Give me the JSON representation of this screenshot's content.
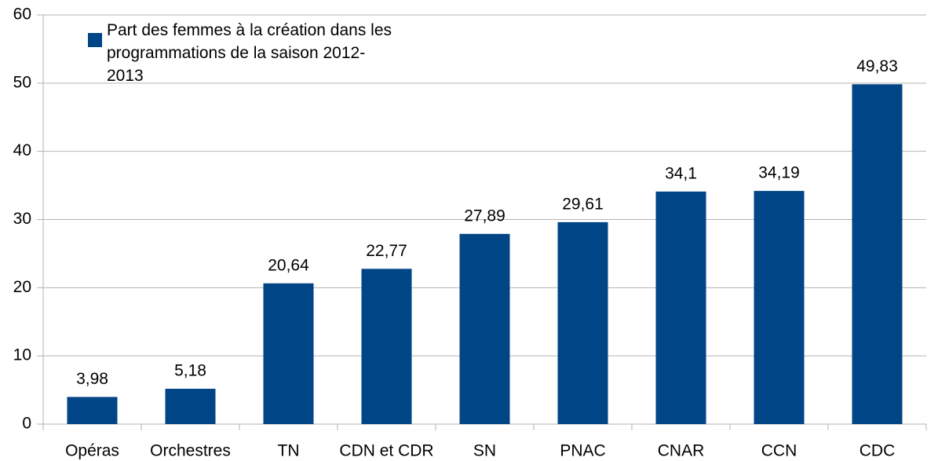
{
  "chart_data": {
    "type": "bar",
    "categories": [
      "Opéras",
      "Orchestres",
      "TN",
      "CDN et CDR",
      "SN",
      "PNAC",
      "CNAR",
      "CCN",
      "CDC"
    ],
    "series": [
      {
        "name": "Part des femmes à la création dans les programmations de la saison 2012-2013",
        "color": "#004586",
        "values": [
          3.98,
          5.18,
          20.64,
          22.77,
          27.89,
          29.61,
          34.1,
          34.19,
          49.83
        ],
        "value_labels": [
          "3,98",
          "5,18",
          "20,64",
          "22,77",
          "27,89",
          "29,61",
          "34,1",
          "34,19",
          "49,83"
        ]
      }
    ],
    "ylim": [
      0,
      60
    ],
    "yticks": [
      0,
      10,
      20,
      30,
      40,
      50,
      60
    ],
    "grid": true,
    "legend": "top-left"
  }
}
